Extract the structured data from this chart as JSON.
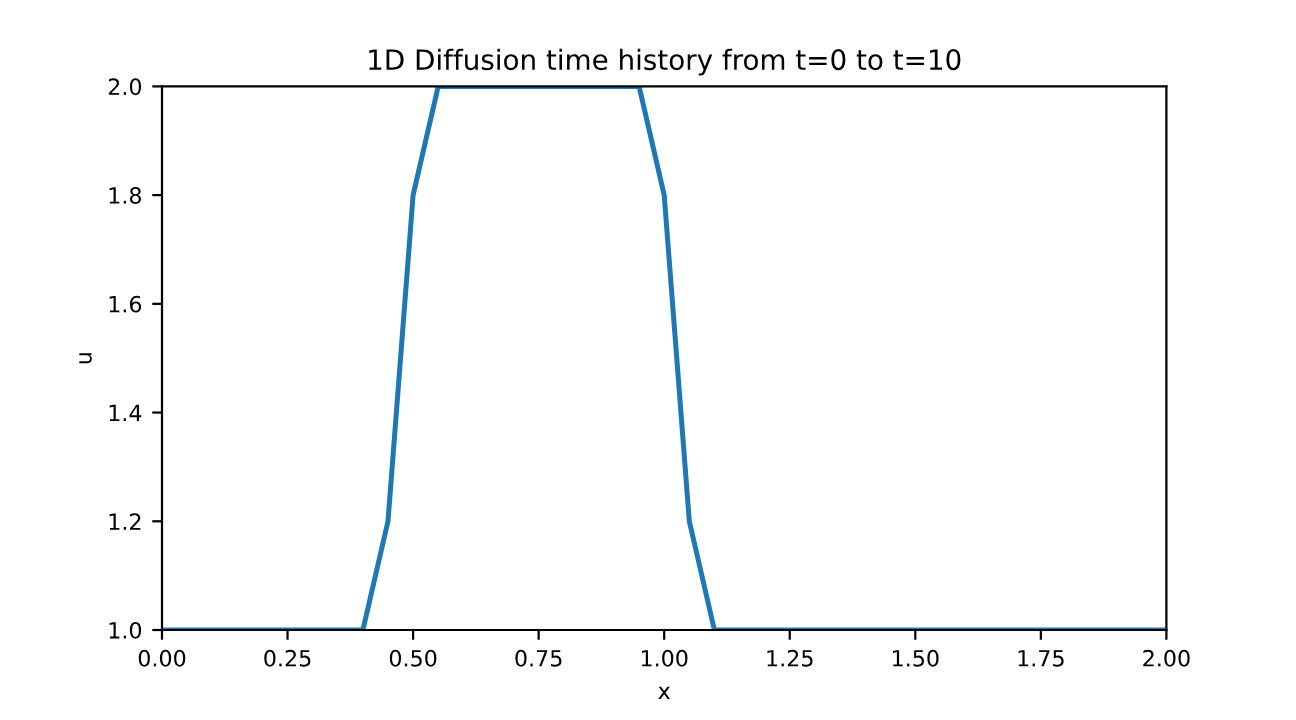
{
  "chart_data": {
    "type": "line",
    "title": "1D Diffusion time history from t=0 to t=10",
    "xlabel": "x",
    "ylabel": "u",
    "x": [
      0,
      0.4,
      0.45,
      0.5,
      0.55,
      0.95,
      1.0,
      1.05,
      1.1,
      2.0
    ],
    "series": [
      {
        "color": "#1f77b4",
        "values": [
          1.0,
          1.0,
          1.2,
          1.8,
          2.0,
          2.0,
          1.8,
          1.2,
          1.0,
          1.0
        ]
      }
    ],
    "xlim": [
      0,
      2
    ],
    "ylim": [
      1,
      2
    ],
    "xticks": [
      {
        "value": 0,
        "label": "0.00"
      },
      {
        "value": 0.25,
        "label": "0.25"
      },
      {
        "value": 0.5,
        "label": "0.50"
      },
      {
        "value": 0.75,
        "label": "0.75"
      },
      {
        "value": 1.0,
        "label": "1.00"
      },
      {
        "value": 1.25,
        "label": "1.25"
      },
      {
        "value": 1.5,
        "label": "1.50"
      },
      {
        "value": 1.75,
        "label": "1.75"
      },
      {
        "value": 2.0,
        "label": "2.00"
      }
    ],
    "yticks": [
      {
        "value": 1,
        "label": "1.0"
      },
      {
        "value": 1.2,
        "label": "1.2"
      },
      {
        "value": 1.4,
        "label": "1.4"
      },
      {
        "value": 1.6,
        "label": "1.6"
      },
      {
        "value": 1.8,
        "label": "1.8"
      },
      {
        "value": 2,
        "label": "2.0"
      }
    ],
    "grid": false,
    "legend": false,
    "line_style": "solid",
    "marker": "none"
  }
}
